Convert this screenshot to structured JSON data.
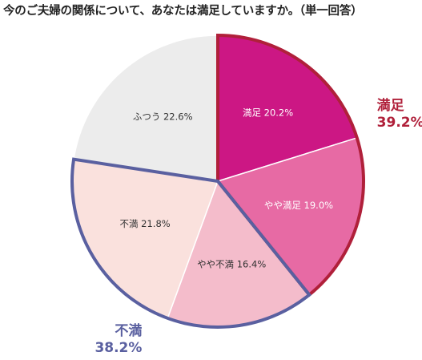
{
  "chart_data": {
    "type": "pie",
    "title": "今のご夫婦の関係について、あなたは満足していますか。（単一回答）",
    "slices": [
      {
        "label": "満足 20.2%",
        "name": "満足",
        "value": 20.2,
        "color": "#cc1784",
        "text_color": "#ffffff"
      },
      {
        "label": "やや満足 19.0%",
        "name": "やや満足",
        "value": 19.0,
        "color": "#e76aa4",
        "text_color": "#ffffff"
      },
      {
        "label": "やや不満 16.4%",
        "name": "やや不満",
        "value": 16.4,
        "color": "#f4bccb",
        "text_color": "#333333"
      },
      {
        "label": "不満 21.8%",
        "name": "不満",
        "value": 21.8,
        "color": "#fae1dd",
        "text_color": "#333333"
      },
      {
        "label": "ふつう 22.6%",
        "name": "ふつう",
        "value": 22.6,
        "color": "#ececec",
        "text_color": "#333333"
      }
    ],
    "groups": [
      {
        "name": "満足",
        "value": "39.2%",
        "color": "#b0203a",
        "slices": [
          0,
          1
        ]
      },
      {
        "name": "不満",
        "value": "38.2%",
        "color": "#5a60a0",
        "slices": [
          2,
          3
        ]
      }
    ],
    "start_angle": 0,
    "direction": "clockwise"
  }
}
